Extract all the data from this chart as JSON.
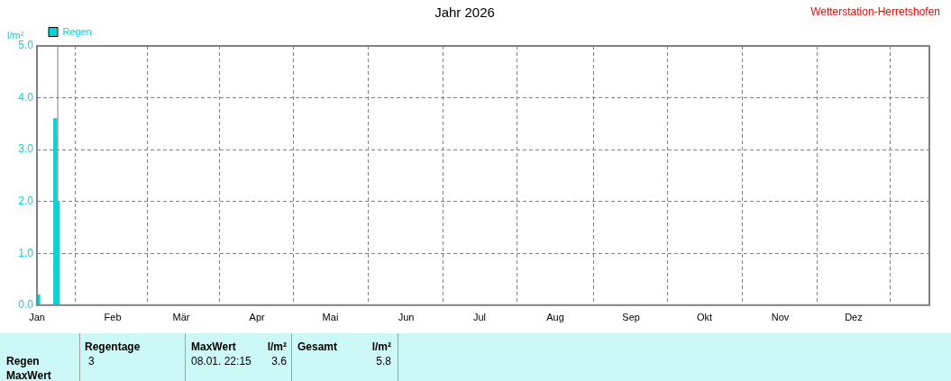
{
  "chart_data": {
    "type": "bar",
    "title": "Jahr 2026",
    "ylabel": "l/m²",
    "x": [
      "2026-01-01",
      "2026-01-08",
      "2026-01-09"
    ],
    "series": [
      {
        "name": "Regen",
        "color": "#00d8d8",
        "values": [
          0.2,
          3.6,
          2.0
        ]
      }
    ],
    "xlim": [
      "2026-01-01",
      "2027-01-01"
    ],
    "xticks": [
      {
        "value": "2026-01-01",
        "label": "Jan"
      },
      {
        "value": "2026-02-01",
        "label": "Feb"
      },
      {
        "value": "2026-03-01",
        "label": "Mär"
      },
      {
        "value": "2026-04-01",
        "label": "Apr"
      },
      {
        "value": "2026-05-01",
        "label": "Mai"
      },
      {
        "value": "2026-06-01",
        "label": "Jun"
      },
      {
        "value": "2026-07-01",
        "label": "Jul"
      },
      {
        "value": "2026-08-01",
        "label": "Aug"
      },
      {
        "value": "2026-09-01",
        "label": "Sep"
      },
      {
        "value": "2026-10-01",
        "label": "Okt"
      },
      {
        "value": "2026-11-01",
        "label": "Nov"
      },
      {
        "value": "2026-12-01",
        "label": "Dez"
      }
    ],
    "ylim": [
      0,
      5
    ],
    "yticks": [
      {
        "value": 0,
        "label": "0.0"
      },
      {
        "value": 1,
        "label": "1.0"
      },
      {
        "value": 2,
        "label": "2.0"
      },
      {
        "value": 3,
        "label": "3.0"
      },
      {
        "value": 4,
        "label": "4.0"
      },
      {
        "value": 5,
        "label": "5.0"
      }
    ],
    "ref_lines": [
      {
        "axis": "x",
        "value": "2026-01-09",
        "color": "#808080"
      }
    ],
    "grid": true,
    "legend": "top left",
    "annotations": [
      "Wetterstation-Herretshofen",
      "Regen",
      "MaxWert",
      "Regentage",
      "3",
      "MaxWert",
      "l/m²",
      "08.01.  22:15",
      "3.6",
      "Gesamt",
      "l/m²",
      "5.8"
    ]
  }
}
